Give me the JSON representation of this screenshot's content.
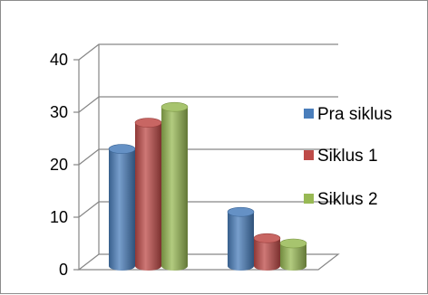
{
  "chart_data": {
    "type": "bar",
    "title": "",
    "xlabel": "",
    "ylabel": "",
    "categories": [
      "",
      ""
    ],
    "ylim": [
      0,
      40
    ],
    "yticks": [
      "0",
      "10",
      "20",
      "30",
      "40"
    ],
    "grid": true,
    "legend_position": "right",
    "series": [
      {
        "name": "Pra siklus",
        "values": [
          23,
          11
        ],
        "color": "#4a7ebb"
      },
      {
        "name": "Siklus 1",
        "values": [
          28,
          6
        ],
        "color": "#be4b48"
      },
      {
        "name": "Siklus 2",
        "values": [
          31,
          5
        ],
        "color": "#98b954"
      }
    ]
  }
}
